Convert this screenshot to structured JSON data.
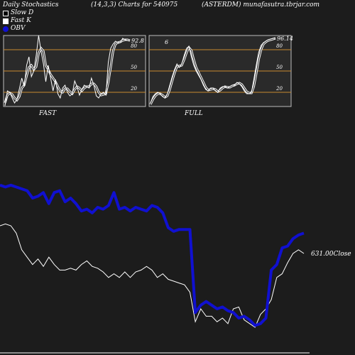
{
  "header": {
    "left": "Daily Stochastics",
    "middle": "(14,3,3) Charts for 540975",
    "right": "(ASTERDM) munafasutra.tbrjar.com"
  },
  "legend": [
    {
      "label": "Slow  D",
      "swatch": "hollow"
    },
    {
      "label": "Fast K",
      "swatch": "filled"
    },
    {
      "label": "OBV",
      "swatch": "blue"
    }
  ],
  "colors": {
    "background": "#1c1c1c",
    "panel": "#2a2a2a",
    "level_line": "#c88a30",
    "obv": "#1010d0",
    "price": "#ffffff"
  },
  "chart_data": [
    {
      "type": "line",
      "panel": "FAST",
      "label": "FAST",
      "ylim": [
        0,
        100
      ],
      "levels": [
        20,
        50,
        80
      ],
      "level_labels": [
        "20",
        "50",
        "80"
      ],
      "last_value_label": "92.8",
      "series": [
        {
          "name": "Fast K",
          "values": [
            1,
            22,
            20,
            12,
            5,
            10,
            25,
            40,
            28,
            58,
            70,
            42,
            50,
            72,
            100,
            78,
            60,
            35,
            58,
            40,
            22,
            38,
            18,
            12,
            26,
            30,
            20,
            15,
            18,
            36,
            28,
            16,
            24,
            30,
            28,
            26,
            40,
            30,
            15,
            12,
            18,
            20,
            16,
            62,
            82,
            88,
            92,
            90,
            90,
            96,
            94,
            93,
            92.8
          ]
        },
        {
          "name": "Slow  D",
          "values": [
            5,
            16,
            19,
            17,
            12,
            9,
            14,
            26,
            30,
            43,
            55,
            58,
            52,
            56,
            75,
            82,
            78,
            58,
            52,
            45,
            40,
            35,
            28,
            22,
            20,
            25,
            25,
            21,
            18,
            24,
            28,
            26,
            22,
            26,
            28,
            28,
            32,
            32,
            28,
            20,
            16,
            17,
            18,
            34,
            55,
            78,
            88,
            90,
            91,
            93,
            94,
            94,
            93
          ]
        }
      ]
    },
    {
      "type": "line",
      "panel": "FULL",
      "label": "FULL",
      "ylim": [
        0,
        100
      ],
      "levels": [
        20,
        50,
        80
      ],
      "level_labels": [
        "20",
        "50",
        "80"
      ],
      "first_value_label": "6",
      "last_value_label": "96.14",
      "series": [
        {
          "name": "Fast K",
          "values": [
            5,
            14,
            18,
            20,
            18,
            14,
            12,
            18,
            30,
            42,
            52,
            60,
            55,
            60,
            72,
            82,
            85,
            70,
            58,
            50,
            44,
            38,
            30,
            24,
            22,
            26,
            26,
            22,
            20,
            26,
            28,
            28,
            26,
            28,
            30,
            30,
            34,
            32,
            28,
            22,
            18,
            18,
            20,
            38,
            58,
            76,
            86,
            90,
            92,
            94,
            95,
            96,
            96.14
          ]
        },
        {
          "name": "Slow  D",
          "values": [
            3,
            10,
            15,
            18,
            18,
            16,
            13,
            15,
            24,
            36,
            47,
            56,
            57,
            58,
            66,
            76,
            83,
            79,
            66,
            55,
            48,
            41,
            34,
            27,
            23,
            24,
            25,
            24,
            21,
            23,
            26,
            28,
            27,
            27,
            29,
            30,
            32,
            33,
            31,
            26,
            21,
            19,
            19,
            28,
            46,
            66,
            80,
            88,
            91,
            93,
            94,
            95,
            96
          ]
        }
      ]
    },
    {
      "type": "line",
      "panel": "OBV / Close",
      "close_label": "631.00Close",
      "ylim": [
        0,
        100
      ],
      "series": [
        {
          "name": "OBV",
          "values": [
            92,
            91,
            92,
            91,
            90,
            89,
            85,
            86,
            88,
            82,
            88,
            89,
            83,
            85,
            82,
            78,
            79,
            77,
            80,
            79,
            81,
            88,
            79,
            80,
            78,
            80,
            79,
            78,
            81,
            80,
            77,
            69,
            67,
            68,
            68,
            68,
            23,
            27,
            29,
            27,
            25,
            26,
            24,
            23,
            20,
            21,
            19,
            16,
            17,
            20,
            46,
            49,
            58,
            59,
            63,
            65,
            66
          ]
        },
        {
          "name": "Close",
          "values": [
            70,
            71,
            70,
            66,
            57,
            53,
            49,
            52,
            48,
            53,
            49,
            46,
            46,
            47,
            46,
            49,
            51,
            48,
            47,
            45,
            42,
            44,
            42,
            45,
            42,
            45,
            46,
            48,
            46,
            42,
            44,
            41,
            40,
            39,
            38,
            34,
            18,
            25,
            21,
            21,
            18,
            20,
            17,
            25,
            26,
            19,
            17,
            15,
            22,
            25,
            30,
            42,
            44,
            50,
            55,
            57,
            55
          ]
        }
      ]
    }
  ]
}
